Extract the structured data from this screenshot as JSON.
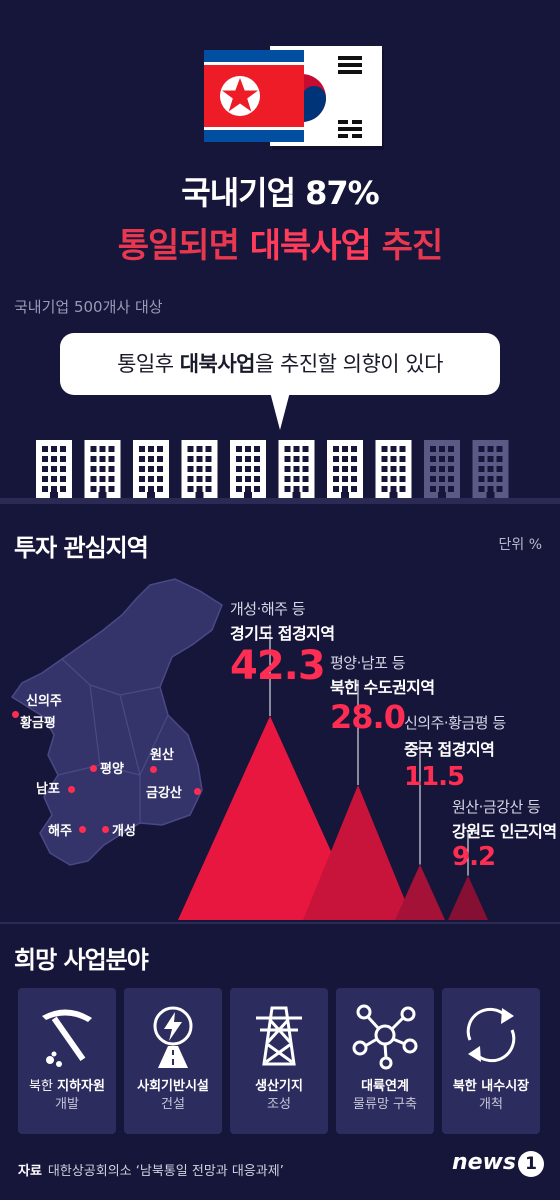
{
  "header": {
    "title_line1": "국내기업 87%",
    "title_line2_pre": "통일되면 ",
    "title_line2_em": "대북사업",
    "title_line2_post": " 추진"
  },
  "survey": {
    "scope": "국내기업 500개사 대상",
    "bubble_pre": "통일후 ",
    "bubble_strong": "대북사업",
    "bubble_post": "을 추진할 의향이 있다",
    "buildings_total": 10,
    "buildings_filled": 8
  },
  "investment": {
    "section_title": "투자 관심지역",
    "unit": "단위 %",
    "cities": {
      "sinuiju": "신의주",
      "hwanggeumpyeong": "황금평",
      "pyongyang": "평양",
      "nampo": "남포",
      "wonsan": "원산",
      "geumgangsan": "금강산",
      "haeju": "해주",
      "kaesong": "개성"
    }
  },
  "chart_data": {
    "type": "bar",
    "categories": [
      "경기도 접경지역",
      "북한 수도권지역",
      "중국 접경지역",
      "강원도 인근지역"
    ],
    "subtitles": [
      "개성·해주 등",
      "평양·남포 등",
      "신의주·황금평 등",
      "원산·금강산 등"
    ],
    "values": [
      42.3,
      28.0,
      11.5,
      9.2
    ],
    "value_labels": [
      "42.3",
      "28.0",
      "11.5",
      "9.2"
    ],
    "colors": [
      "#e8173f",
      "#c8143a",
      "#a51238",
      "#861034"
    ]
  },
  "business": {
    "section_title": "희망 사업분야",
    "cards": [
      {
        "icon": "pickaxe-icon",
        "pre": "북한 ",
        "bold": "지하자원",
        "line2": "개발"
      },
      {
        "icon": "infrastructure-icon",
        "pre": "",
        "bold": "사회기반시설",
        "line2": "건설"
      },
      {
        "icon": "power-tower-icon",
        "pre": "",
        "bold": "생산기지",
        "line2": "조성"
      },
      {
        "icon": "network-icon",
        "pre": "",
        "bold": "대륙연계",
        "line2": "물류망 구축"
      },
      {
        "icon": "recycle-arrows-icon",
        "pre": "",
        "bold": "북한 내수시장",
        "line2": "개척"
      }
    ]
  },
  "footer": {
    "source_label": "자료",
    "source_text": "대한상공회의소 ‘남북통일 전망과 대응과제’",
    "logo_text": "news",
    "logo_num": "1"
  }
}
